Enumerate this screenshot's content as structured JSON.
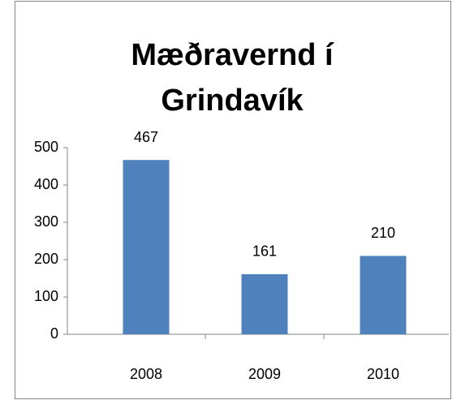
{
  "chart_data": {
    "type": "bar",
    "title": "Mæðravernd í Grindavík",
    "categories": [
      "2008",
      "2009",
      "2010"
    ],
    "values": [
      467,
      161,
      210
    ],
    "color": "#4f81bd",
    "ylim": [
      0,
      500
    ],
    "yticks": [
      0,
      100,
      200,
      300,
      400,
      500
    ],
    "grid": false
  }
}
